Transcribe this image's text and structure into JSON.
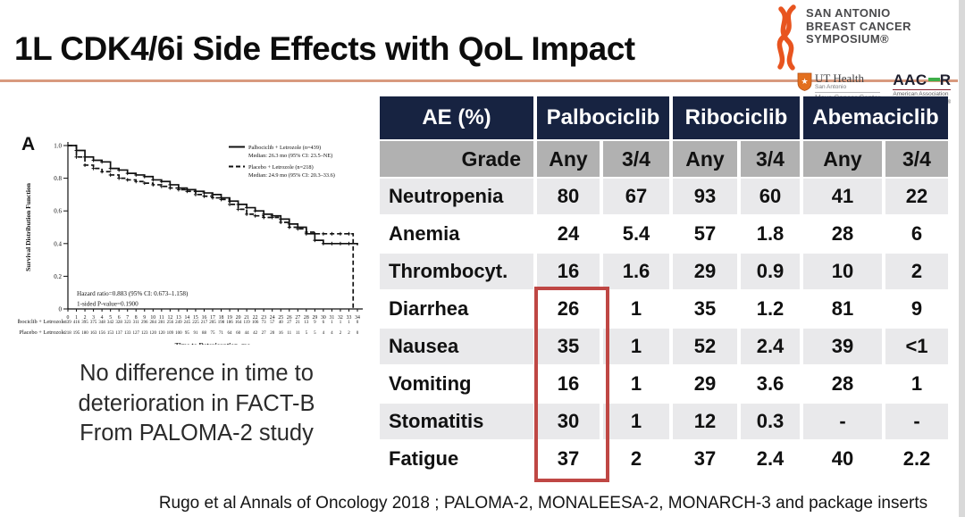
{
  "slide": {
    "title": "1L CDK4/6i Side Effects with QoL Impact",
    "callout_line1": "No difference in time to",
    "callout_line2": "deterioration in FACT-B",
    "callout_line3": "From PALOMA-2 study",
    "footer": "Rugo et al Annals of Oncology 2018 ; PALOMA-2, MONALEESA-2, MONARCH-3 and package inserts"
  },
  "logos": {
    "sabcs_line1": "SAN ANTONIO",
    "sabcs_line2": "BREAST CANCER",
    "sabcs_line3": "SYMPOSIUM®",
    "ut_name": "UT Health",
    "ut_city": "San Antonio",
    "ut_center": "Mays Cancer Center",
    "aacr_part1": "AAC",
    "aacr_part2": "R",
    "aacr_sub1": "American Association",
    "aacr_sub2": "for Cancer Research®"
  },
  "chart_data": {
    "type": "line",
    "subtype": "kaplan-meier",
    "panel_label": "A",
    "title": "",
    "xlabel": "Time to Deterioration, mo",
    "ylabel": "Survival Distribution Function",
    "xlim": [
      0,
      34
    ],
    "ylim": [
      0,
      1.0
    ],
    "xtick_step": 1,
    "yticks": [
      0,
      0.2,
      0.4,
      0.6,
      0.8,
      1.0
    ],
    "grid": false,
    "legend_position": "top-right",
    "series": [
      {
        "name": "Palbociclib + Letrozole (n=439)",
        "median_label": "Median: 26.3 mo (95% CI: 23.5–NE)",
        "style": "solid",
        "x": [
          0,
          1,
          2,
          3,
          4,
          5,
          6,
          7,
          8,
          9,
          10,
          11,
          12,
          13,
          14,
          15,
          16,
          17,
          18,
          19,
          20,
          21,
          22,
          23,
          24,
          25,
          26,
          27,
          28,
          29,
          30,
          31,
          32,
          33,
          34
        ],
        "y": [
          1.0,
          0.97,
          0.93,
          0.91,
          0.9,
          0.86,
          0.85,
          0.83,
          0.82,
          0.81,
          0.79,
          0.78,
          0.76,
          0.74,
          0.73,
          0.72,
          0.71,
          0.7,
          0.68,
          0.66,
          0.64,
          0.62,
          0.6,
          0.58,
          0.57,
          0.55,
          0.52,
          0.5,
          0.46,
          0.42,
          0.4,
          0.4,
          0.4,
          0.4,
          0.39
        ]
      },
      {
        "name": "Placebo + Letrozole (n=218)",
        "median_label": "Median: 24.9 mo (95% CI: 20.3–33.6)",
        "style": "dashed",
        "x": [
          0,
          1,
          2,
          3,
          4,
          5,
          6,
          7,
          8,
          9,
          10,
          11,
          12,
          13,
          14,
          15,
          16,
          17,
          18,
          19,
          20,
          21,
          22,
          23,
          24,
          25,
          26,
          27,
          28,
          29,
          30,
          31,
          32,
          33,
          33.5
        ],
        "y": [
          1.0,
          0.93,
          0.88,
          0.86,
          0.84,
          0.82,
          0.8,
          0.79,
          0.78,
          0.77,
          0.76,
          0.75,
          0.74,
          0.73,
          0.72,
          0.7,
          0.69,
          0.68,
          0.67,
          0.64,
          0.61,
          0.58,
          0.57,
          0.56,
          0.56,
          0.53,
          0.5,
          0.49,
          0.47,
          0.46,
          0.46,
          0.46,
          0.46,
          0.46,
          0.0
        ]
      }
    ],
    "annotations": [
      "Hazard ratio=0.883 (95% CI: 0.673–1.158)",
      "1-sided P-value=0.1900"
    ],
    "at_risk": {
      "rows": [
        {
          "label": "Palbociclib + Letrozole",
          "counts": [
            439,
            416,
            395,
            375,
            348,
            342,
            328,
            323,
            311,
            296,
            284,
            281,
            256,
            249,
            245,
            225,
            217,
            205,
            198,
            186,
            164,
            119,
            106,
            73,
            57,
            40,
            27,
            21,
            13,
            9,
            6,
            1,
            1,
            1,
            0
          ]
        },
        {
          "label": "Placebo + Letrozole",
          "counts": [
            218,
            195,
            180,
            163,
            156,
            153,
            137,
            133,
            127,
            123,
            120,
            120,
            109,
            100,
            95,
            91,
            88,
            75,
            71,
            64,
            60,
            44,
            42,
            27,
            20,
            16,
            11,
            11,
            5,
            5,
            4,
            4,
            2,
            2,
            0
          ]
        }
      ]
    }
  },
  "ae_table": {
    "type": "table",
    "col_groups": [
      "AE (%)",
      "Palbociclib",
      "Ribociclib",
      "Abemaciclib"
    ],
    "grade_label": "Grade",
    "grade_cols": [
      "Any",
      "3/4",
      "Any",
      "3/4",
      "Any",
      "3/4"
    ],
    "rows": [
      {
        "ae": "Neutropenia",
        "values": [
          "80",
          "67",
          "93",
          "60",
          "41",
          "22"
        ]
      },
      {
        "ae": "Anemia",
        "values": [
          "24",
          "5.4",
          "57",
          "1.8",
          "28",
          "6"
        ]
      },
      {
        "ae": "Thrombocyt.",
        "values": [
          "16",
          "1.6",
          "29",
          "0.9",
          "10",
          "2"
        ]
      },
      {
        "ae": "Diarrhea",
        "values": [
          "26",
          "1",
          "35",
          "1.2",
          "81",
          "9"
        ]
      },
      {
        "ae": "Nausea",
        "values": [
          "35",
          "1",
          "52",
          "2.4",
          "39",
          "<1"
        ]
      },
      {
        "ae": "Vomiting",
        "values": [
          "16",
          "1",
          "29",
          "3.6",
          "28",
          "1"
        ]
      },
      {
        "ae": "Stomatitis",
        "values": [
          "30",
          "1",
          "12",
          "0.3",
          "-",
          "-"
        ]
      },
      {
        "ae": "Fatigue",
        "values": [
          "37",
          "2",
          "37",
          "2.4",
          "40",
          "2.2"
        ]
      }
    ],
    "highlight": {
      "description": "Red box around Palbociclib Any column, rows Diarrhea through Fatigue",
      "values_boxed": [
        "26",
        "35",
        "16",
        "30",
        "37"
      ],
      "color": "#bf4744"
    }
  },
  "colors": {
    "header_bg": "#172341",
    "grade_bg": "#b1b1b1",
    "row_alt_bg": "#e9e9eb",
    "highlight_border": "#bf4744",
    "title_rule": "#d89a7e",
    "sabcs_orange": "#e8541f",
    "ut_orange": "#e36f1e",
    "aacr_green": "#3dae49"
  }
}
